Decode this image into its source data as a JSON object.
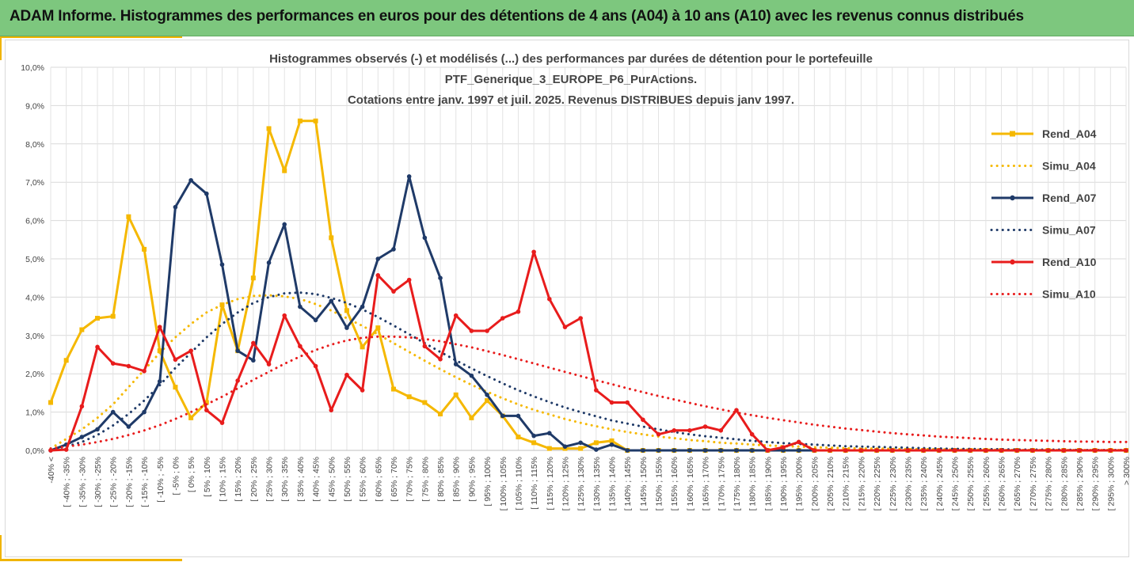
{
  "header": {
    "title": "ADAM Informe. Histogrammes des performances en euros pour des détentions de 4 ans (A04) à 10 ans (A10) avec les revenus connus distribués"
  },
  "chart_data": {
    "type": "line",
    "title_lines": [
      "Histogrammes observés (-) et modélisés (...) des performances par durées de détention pour le portefeuille",
      "PTF_Generique_3_EUROPE_P6_PurActions.",
      "Cotations entre janv. 1997 et juil. 2025. Revenus DISTRIBUES depuis janv 1997."
    ],
    "ylim": [
      0,
      10
    ],
    "yticks": [
      "0,0%",
      "1,0%",
      "2,0%",
      "3,0%",
      "4,0%",
      "5,0%",
      "6,0%",
      "7,0%",
      "8,0%",
      "9,0%",
      "10,0%"
    ],
    "grid": true,
    "legend_position": "right",
    "categories": [
      "-40% <",
      "[ -40% ; -35%",
      "[ -35% ; -30%",
      "[ -30% ; -25%",
      "[ -25% ; -20%",
      "[ -20% ; -15%",
      "[ -15% ; -10%",
      "[ -10% ; -5%",
      "[ -5% ; 0%",
      "[ 0% ; 5%",
      "[ 5% ; 10%",
      "[ 10% ; 15%",
      "[ 15% ; 20%",
      "[ 20% ; 25%",
      "[ 25% ; 30%",
      "[ 30% ; 35%",
      "[ 35% ; 40%",
      "[ 40% ; 45%",
      "[ 45% ; 50%",
      "[ 50% ; 55%",
      "[ 55% ; 60%",
      "[ 60% ; 65%",
      "[ 65% ; 70%",
      "[ 70% ; 75%",
      "[ 75% ; 80%",
      "[ 80% ; 85%",
      "[ 85% ; 90%",
      "[ 90% ; 95%",
      "[ 95% ; 100%",
      "[ 100% ; 105%",
      "[ 105% ; 110%",
      "[ 110% ; 115%",
      "[ 115% ; 120%",
      "[ 120% ; 125%",
      "[ 125% ; 130%",
      "[ 130% ; 135%",
      "[ 135% ; 140%",
      "[ 140% ; 145%",
      "[ 145% ; 150%",
      "[ 150% ; 155%",
      "[ 155% ; 160%",
      "[ 160% ; 165%",
      "[ 165% ; 170%",
      "[ 170% ; 175%",
      "[ 175% ; 180%",
      "[ 180% ; 185%",
      "[ 185% ; 190%",
      "[ 190% ; 195%",
      "[ 195% ; 200%",
      "[ 200% ; 205%",
      "[ 205% ; 210%",
      "[ 210% ; 215%",
      "[ 215% ; 220%",
      "[ 220% ; 225%",
      "[ 225% ; 230%",
      "[ 230% ; 235%",
      "[ 235% ; 240%",
      "[ 240% ; 245%",
      "[ 245% ; 250%",
      "[ 250% ; 255%",
      "[ 255% ; 260%",
      "[ 260% ; 265%",
      "[ 265% ; 270%",
      "[ 270% ; 275%",
      "[ 275% ; 280%",
      "[ 280% ; 285%",
      "[ 285% ; 290%",
      "[ 290% ; 295%",
      "[ 295% ; 300%",
      "> 300%"
    ],
    "series": [
      {
        "name": "Rend_A04",
        "color": "#f5b800",
        "style": "solid",
        "marker": "square",
        "values": [
          1.25,
          2.35,
          3.15,
          3.45,
          3.5,
          6.1,
          5.25,
          2.6,
          1.65,
          0.85,
          1.25,
          3.8,
          2.6,
          4.5,
          8.4,
          7.3,
          8.6,
          8.6,
          5.55,
          3.65,
          2.7,
          3.2,
          1.6,
          1.4,
          1.25,
          0.95,
          1.45,
          0.85,
          1.3,
          0.9,
          0.35,
          0.2,
          0.05,
          0.05,
          0.05,
          0.2,
          0.25,
          0,
          0,
          0,
          0,
          0,
          0,
          0,
          0,
          0,
          0,
          0,
          0,
          0,
          0,
          0,
          0,
          0,
          0,
          0,
          0,
          0,
          0,
          0,
          0,
          0,
          0,
          0,
          0,
          0,
          0,
          0,
          0,
          0
        ]
      },
      {
        "name": "Simu_A04",
        "color": "#f5b800",
        "style": "dotted",
        "marker": "none",
        "values": [
          0.05,
          0.3,
          0.55,
          0.85,
          1.2,
          1.65,
          2.1,
          2.55,
          2.95,
          3.3,
          3.6,
          3.8,
          3.95,
          4.03,
          4.05,
          4.02,
          3.95,
          3.82,
          3.65,
          3.45,
          3.25,
          3.03,
          2.8,
          2.57,
          2.34,
          2.12,
          1.91,
          1.71,
          1.53,
          1.36,
          1.2,
          1.06,
          0.94,
          0.82,
          0.72,
          0.63,
          0.55,
          0.48,
          0.42,
          0.36,
          0.32,
          0.27,
          0.24,
          0.2,
          0.18,
          0.15,
          0.13,
          0.11,
          0.1,
          0.08,
          0.07,
          0.06,
          0.05,
          0.05,
          0.04,
          0.03,
          0.03,
          0.03,
          0.02,
          0.02,
          0.02,
          0.01,
          0.01,
          0.01,
          0.01,
          0.01,
          0.01,
          0.01,
          0.01,
          0.01
        ]
      },
      {
        "name": "Rend_A07",
        "color": "#1f3a68",
        "style": "solid",
        "marker": "circle",
        "values": [
          0,
          0.15,
          0.35,
          0.55,
          1.0,
          0.62,
          1.0,
          1.8,
          6.35,
          7.05,
          6.7,
          4.85,
          2.6,
          2.35,
          4.9,
          5.9,
          3.75,
          3.4,
          3.9,
          3.2,
          3.75,
          5.0,
          5.25,
          7.15,
          5.55,
          4.5,
          2.25,
          1.95,
          1.45,
          0.9,
          0.9,
          0.38,
          0.45,
          0.1,
          0.2,
          0.02,
          0.15,
          0,
          0,
          0,
          0,
          0,
          0,
          0,
          0,
          0,
          0,
          0,
          0,
          0,
          0,
          0,
          0,
          0,
          0,
          0,
          0,
          0,
          0,
          0,
          0,
          0,
          0,
          0,
          0,
          0,
          0,
          0,
          0,
          0
        ]
      },
      {
        "name": "Simu_A07",
        "color": "#1f3a68",
        "style": "dotted",
        "marker": "none",
        "values": [
          0.02,
          0.1,
          0.22,
          0.4,
          0.65,
          0.95,
          1.3,
          1.7,
          2.15,
          2.55,
          2.95,
          3.3,
          3.6,
          3.85,
          4.0,
          4.1,
          4.12,
          4.08,
          3.98,
          3.85,
          3.68,
          3.48,
          3.26,
          3.03,
          2.8,
          2.57,
          2.35,
          2.14,
          1.94,
          1.75,
          1.57,
          1.41,
          1.26,
          1.12,
          1.0,
          0.89,
          0.78,
          0.7,
          0.62,
          0.55,
          0.48,
          0.42,
          0.37,
          0.33,
          0.29,
          0.25,
          0.22,
          0.19,
          0.17,
          0.15,
          0.13,
          0.11,
          0.1,
          0.09,
          0.08,
          0.07,
          0.06,
          0.05,
          0.04,
          0.04,
          0.03,
          0.03,
          0.02,
          0.02,
          0.02,
          0.02,
          0.01,
          0.01,
          0.01,
          0.01
        ]
      },
      {
        "name": "Rend_A10",
        "color": "#e81c1c",
        "style": "solid",
        "marker": "circle",
        "values": [
          0,
          0.02,
          1.15,
          2.7,
          2.27,
          2.2,
          2.07,
          3.22,
          2.37,
          2.6,
          1.05,
          0.72,
          1.82,
          2.8,
          2.25,
          3.52,
          2.72,
          2.2,
          1.05,
          1.97,
          1.57,
          4.57,
          4.15,
          4.45,
          2.72,
          2.38,
          3.52,
          3.12,
          3.12,
          3.45,
          3.62,
          5.18,
          3.95,
          3.22,
          3.45,
          1.57,
          1.25,
          1.25,
          0.8,
          0.42,
          0.52,
          0.52,
          0.62,
          0.52,
          1.05,
          0.42,
          0,
          0.08,
          0.22,
          0,
          0,
          0,
          0,
          0,
          0,
          0,
          0,
          0,
          0,
          0,
          0,
          0,
          0,
          0,
          0,
          0,
          0,
          0,
          0,
          0
        ]
      },
      {
        "name": "Simu_A10",
        "color": "#e81c1c",
        "style": "dotted",
        "marker": "none",
        "values": [
          0.05,
          0.1,
          0.15,
          0.22,
          0.3,
          0.4,
          0.52,
          0.66,
          0.82,
          1.0,
          1.2,
          1.4,
          1.62,
          1.84,
          2.05,
          2.26,
          2.45,
          2.62,
          2.76,
          2.87,
          2.94,
          2.97,
          2.97,
          2.95,
          2.91,
          2.85,
          2.77,
          2.69,
          2.59,
          2.49,
          2.38,
          2.27,
          2.16,
          2.05,
          1.94,
          1.83,
          1.73,
          1.62,
          1.52,
          1.42,
          1.33,
          1.24,
          1.15,
          1.07,
          0.99,
          0.92,
          0.85,
          0.79,
          0.73,
          0.67,
          0.62,
          0.57,
          0.53,
          0.49,
          0.45,
          0.42,
          0.39,
          0.36,
          0.34,
          0.32,
          0.3,
          0.28,
          0.27,
          0.26,
          0.25,
          0.24,
          0.23,
          0.23,
          0.22,
          0.22
        ]
      }
    ]
  }
}
